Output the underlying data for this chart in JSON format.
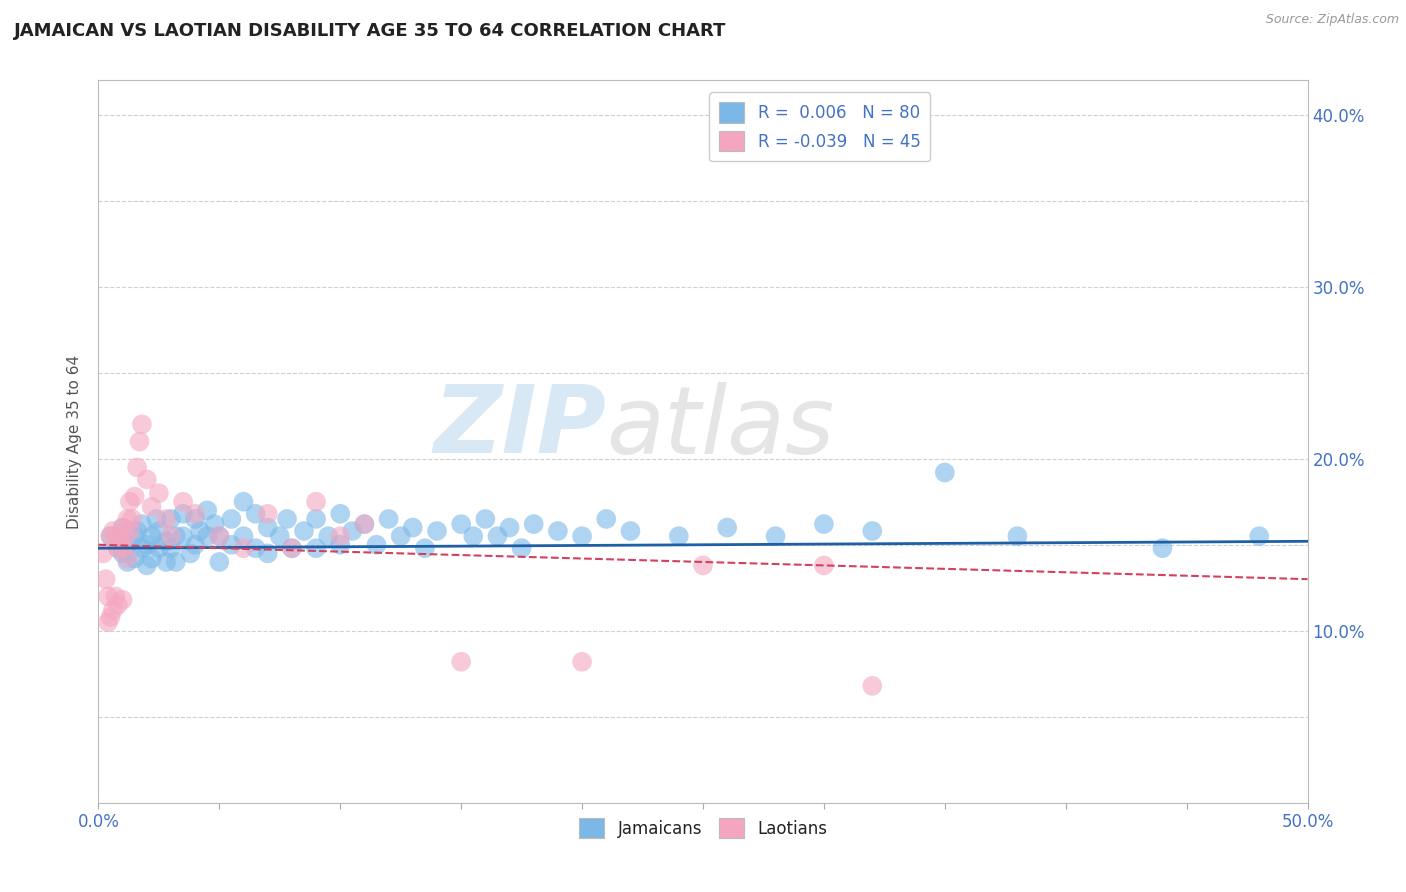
{
  "title": "JAMAICAN VS LAOTIAN DISABILITY AGE 35 TO 64 CORRELATION CHART",
  "source_text": "Source: ZipAtlas.com",
  "ylabel": "Disability Age 35 to 64",
  "xlim": [
    0.0,
    0.5
  ],
  "ylim": [
    0.0,
    0.42
  ],
  "xticks": [
    0.0,
    0.05,
    0.1,
    0.15,
    0.2,
    0.25,
    0.3,
    0.35,
    0.4,
    0.45,
    0.5
  ],
  "yticks": [
    0.0,
    0.05,
    0.1,
    0.15,
    0.2,
    0.25,
    0.3,
    0.35,
    0.4
  ],
  "blue_color": "#7bb8e8",
  "pink_color": "#f4a6c0",
  "blue_line_color": "#1f5fa6",
  "pink_line_color": "#d44060",
  "blue_line_y0": 0.148,
  "blue_line_y1": 0.152,
  "pink_line_y0": 0.15,
  "pink_line_y1": 0.13,
  "jamaican_x": [
    0.005,
    0.008,
    0.01,
    0.01,
    0.012,
    0.012,
    0.015,
    0.015,
    0.016,
    0.018,
    0.018,
    0.02,
    0.02,
    0.022,
    0.022,
    0.024,
    0.025,
    0.025,
    0.028,
    0.028,
    0.03,
    0.03,
    0.032,
    0.032,
    0.035,
    0.035,
    0.038,
    0.04,
    0.04,
    0.042,
    0.045,
    0.045,
    0.048,
    0.05,
    0.05,
    0.055,
    0.055,
    0.06,
    0.06,
    0.065,
    0.065,
    0.07,
    0.07,
    0.075,
    0.078,
    0.08,
    0.085,
    0.09,
    0.09,
    0.095,
    0.1,
    0.1,
    0.105,
    0.11,
    0.115,
    0.12,
    0.125,
    0.13,
    0.135,
    0.14,
    0.15,
    0.155,
    0.16,
    0.165,
    0.17,
    0.175,
    0.18,
    0.19,
    0.2,
    0.21,
    0.22,
    0.24,
    0.26,
    0.28,
    0.3,
    0.32,
    0.35,
    0.38,
    0.44,
    0.48
  ],
  "jamaican_y": [
    0.155,
    0.148,
    0.16,
    0.145,
    0.15,
    0.14,
    0.155,
    0.142,
    0.158,
    0.148,
    0.162,
    0.15,
    0.138,
    0.155,
    0.142,
    0.165,
    0.148,
    0.158,
    0.152,
    0.14,
    0.165,
    0.148,
    0.155,
    0.14,
    0.168,
    0.155,
    0.145,
    0.165,
    0.15,
    0.158,
    0.17,
    0.155,
    0.162,
    0.155,
    0.14,
    0.165,
    0.15,
    0.175,
    0.155,
    0.168,
    0.148,
    0.16,
    0.145,
    0.155,
    0.165,
    0.148,
    0.158,
    0.165,
    0.148,
    0.155,
    0.168,
    0.15,
    0.158,
    0.162,
    0.15,
    0.165,
    0.155,
    0.16,
    0.148,
    0.158,
    0.162,
    0.155,
    0.165,
    0.155,
    0.16,
    0.148,
    0.162,
    0.158,
    0.155,
    0.165,
    0.158,
    0.155,
    0.16,
    0.155,
    0.162,
    0.158,
    0.192,
    0.155,
    0.148,
    0.155
  ],
  "laotian_x": [
    0.002,
    0.003,
    0.004,
    0.004,
    0.005,
    0.005,
    0.006,
    0.006,
    0.007,
    0.007,
    0.008,
    0.008,
    0.009,
    0.01,
    0.01,
    0.01,
    0.011,
    0.012,
    0.012,
    0.013,
    0.013,
    0.014,
    0.015,
    0.016,
    0.017,
    0.018,
    0.02,
    0.022,
    0.025,
    0.028,
    0.03,
    0.035,
    0.04,
    0.05,
    0.06,
    0.07,
    0.08,
    0.09,
    0.1,
    0.11,
    0.15,
    0.2,
    0.25,
    0.3,
    0.32
  ],
  "laotian_y": [
    0.145,
    0.13,
    0.12,
    0.105,
    0.155,
    0.108,
    0.158,
    0.112,
    0.155,
    0.12,
    0.148,
    0.115,
    0.152,
    0.16,
    0.148,
    0.118,
    0.155,
    0.165,
    0.142,
    0.158,
    0.175,
    0.165,
    0.178,
    0.195,
    0.21,
    0.22,
    0.188,
    0.172,
    0.18,
    0.165,
    0.155,
    0.175,
    0.168,
    0.155,
    0.148,
    0.168,
    0.148,
    0.175,
    0.155,
    0.162,
    0.082,
    0.082,
    0.138,
    0.138,
    0.068
  ],
  "watermark_zip": "ZIP",
  "watermark_atlas": "atlas",
  "background_color": "#ffffff",
  "grid_color": "#d0d0d0"
}
